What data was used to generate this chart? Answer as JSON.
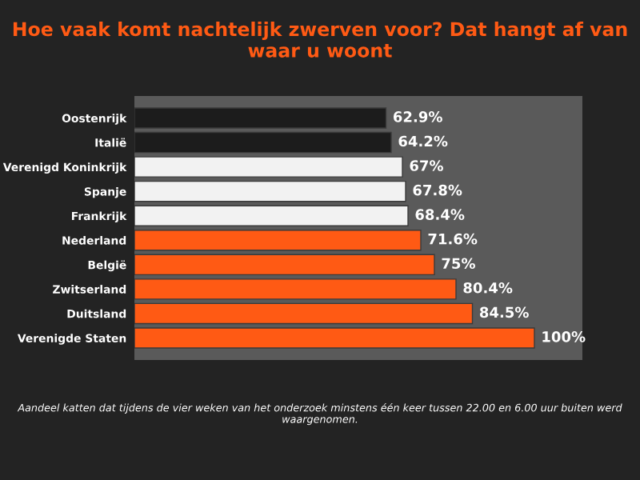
{
  "chart_data": {
    "type": "bar",
    "orientation": "horizontal",
    "title": "Hoe vaak komt nachtelijk zwerven voor? Dat hangt af van waar u woont",
    "categories": [
      "Oostenrijk",
      "Italië",
      "Verenigd Koninkrijk",
      "Spanje",
      "Frankrijk",
      "Nederland",
      "België",
      "Zwitserland",
      "Duitsland",
      "Verenigde Staten"
    ],
    "values": [
      62.9,
      64.2,
      67,
      67.8,
      68.4,
      71.6,
      75,
      80.4,
      84.5,
      100
    ],
    "value_labels": [
      "62.9%",
      "64.2%",
      "67%",
      "67.8%",
      "68.4%",
      "71.6%",
      "75%",
      "80.4%",
      "84.5%",
      "100%"
    ],
    "colors": [
      "#1c1c1c",
      "#1c1c1c",
      "#f2f2f2",
      "#f2f2f2",
      "#f2f2f2",
      "#ff5a14",
      "#ff5a14",
      "#ff5a14",
      "#ff5a14",
      "#ff5a14"
    ],
    "grid": false,
    "legend": false,
    "annotations": [
      "Aandeel katten dat tijdens de vier weken van het onderzoek minstens één keer tussen 22.00 en 6.00 uur buiten werd waargenomen."
    ]
  }
}
